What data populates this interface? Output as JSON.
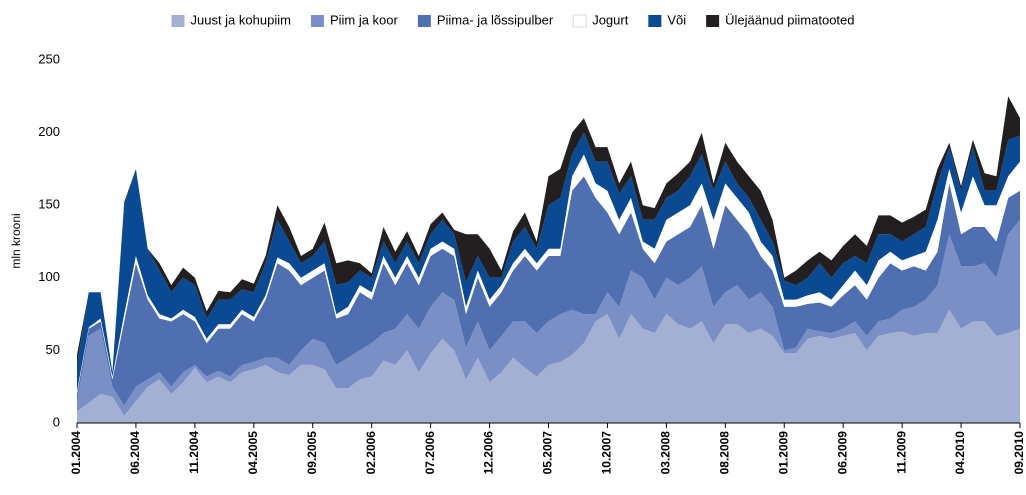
{
  "chart_data": {
    "type": "stacked_area",
    "ylabel": "mln krooni",
    "categories": [
      "01.2004",
      null,
      null,
      null,
      null,
      "06.2004",
      null,
      null,
      null,
      null,
      "11.2004",
      null,
      null,
      null,
      null,
      "04.2005",
      null,
      null,
      null,
      null,
      "09.2005",
      null,
      null,
      null,
      null,
      "02.2006",
      null,
      null,
      null,
      null,
      "07.2006",
      null,
      null,
      null,
      null,
      "12.2006",
      null,
      null,
      null,
      null,
      "05.2007",
      null,
      null,
      null,
      null,
      "10.2007",
      null,
      null,
      null,
      null,
      "03.2008",
      null,
      null,
      null,
      null,
      "08.2008",
      null,
      null,
      null,
      null,
      "01.2009",
      null,
      null,
      null,
      null,
      "06.2009",
      null,
      null,
      null,
      null,
      "11.2009",
      null,
      null,
      null,
      null,
      "04.2010",
      null,
      null,
      null,
      null,
      "09.2010"
    ],
    "ylim": [
      0,
      250
    ],
    "yticks": [
      0,
      50,
      100,
      150,
      200,
      250
    ],
    "grid": false,
    "legend": "top",
    "series": [
      {
        "name": "Juust ja kohupiim",
        "color": "#a3afd3",
        "values": [
          8,
          14,
          20,
          18,
          5,
          15,
          25,
          30,
          20,
          28,
          38,
          28,
          32,
          28,
          35,
          37,
          40,
          35,
          33,
          40,
          40,
          37,
          24,
          24,
          30,
          32,
          43,
          40,
          50,
          35,
          48,
          58,
          50,
          30,
          45,
          28,
          35,
          45,
          38,
          32,
          40,
          42,
          47,
          55,
          70,
          75,
          58,
          75,
          65,
          62,
          75,
          68,
          65,
          70,
          55,
          68,
          68,
          62,
          65,
          60,
          48,
          48,
          58,
          60,
          58,
          60,
          62,
          50,
          60,
          62,
          63,
          60,
          62,
          62,
          78,
          65,
          70,
          70,
          60,
          62,
          65
        ]
      },
      {
        "name": "Piim ja koor",
        "color": "#7a8fc6",
        "values": [
          7,
          46,
          45,
          7,
          7,
          10,
          5,
          5,
          5,
          7,
          2,
          4,
          4,
          4,
          5,
          5,
          5,
          10,
          7,
          10,
          18,
          18,
          16,
          21,
          20,
          23,
          19,
          25,
          25,
          30,
          32,
          32,
          35,
          22,
          25,
          22,
          25,
          25,
          32,
          30,
          30,
          33,
          31,
          20,
          5,
          15,
          22,
          30,
          35,
          23,
          25,
          27,
          35,
          38,
          25,
          22,
          27,
          23,
          25,
          20,
          2,
          4,
          7,
          3,
          4,
          5,
          8,
          10,
          10,
          10,
          15,
          20,
          23,
          33,
          52,
          43,
          38,
          40,
          40,
          68,
          75
        ]
      },
      {
        "name": "Piima- ja lõssipulber",
        "color": "#4f6fb0",
        "values": [
          5,
          5,
          5,
          5,
          58,
          85,
          55,
          37,
          45,
          40,
          30,
          23,
          29,
          33,
          35,
          28,
          40,
          65,
          65,
          45,
          42,
          50,
          32,
          30,
          40,
          30,
          48,
          30,
          35,
          30,
          35,
          30,
          30,
          23,
          30,
          30,
          30,
          35,
          45,
          43,
          45,
          40,
          82,
          95,
          80,
          55,
          50,
          40,
          20,
          25,
          25,
          35,
          35,
          42,
          40,
          60,
          45,
          45,
          25,
          25,
          30,
          28,
          17,
          20,
          18,
          23,
          25,
          25,
          30,
          38,
          27,
          28,
          20,
          23,
          35,
          22,
          27,
          25,
          25,
          25,
          20
        ]
      },
      {
        "name": "Jogurt",
        "color": "#ffffff",
        "values": [
          2,
          1,
          2,
          2,
          5,
          5,
          3,
          3,
          2,
          3,
          3,
          3,
          3,
          3,
          3,
          3,
          3,
          4,
          5,
          5,
          5,
          5,
          3,
          5,
          5,
          5,
          5,
          5,
          5,
          5,
          5,
          5,
          5,
          5,
          5,
          5,
          5,
          5,
          5,
          5,
          5,
          5,
          10,
          15,
          10,
          15,
          10,
          10,
          5,
          10,
          15,
          15,
          15,
          15,
          20,
          15,
          15,
          15,
          10,
          10,
          5,
          5,
          6,
          7,
          5,
          7,
          10,
          10,
          12,
          8,
          7,
          7,
          13,
          22,
          10,
          15,
          35,
          15,
          25,
          15,
          20
        ]
      },
      {
        "name": "Või",
        "color": "#0a4a93",
        "values": [
          18,
          24,
          18,
          3,
          75,
          60,
          32,
          30,
          18,
          22,
          22,
          14,
          17,
          17,
          14,
          17,
          22,
          26,
          15,
          10,
          10,
          15,
          20,
          17,
          10,
          10,
          10,
          10,
          10,
          10,
          10,
          15,
          10,
          17,
          10,
          15,
          5,
          15,
          15,
          10,
          30,
          35,
          15,
          15,
          15,
          20,
          18,
          15,
          15,
          20,
          15,
          15,
          20,
          20,
          20,
          15,
          10,
          10,
          15,
          10,
          13,
          10,
          12,
          20,
          15,
          15,
          10,
          15,
          18,
          12,
          13,
          15,
          17,
          25,
          15,
          15,
          20,
          10,
          10,
          25,
          18
        ]
      },
      {
        "name": "Ülejäänud piimatooted",
        "color": "#231f20",
        "values": [
          7,
          0,
          0,
          0,
          2,
          0,
          0,
          5,
          5,
          7,
          5,
          5,
          6,
          5,
          7,
          6,
          5,
          10,
          10,
          5,
          5,
          13,
          15,
          15,
          5,
          3,
          10,
          8,
          7,
          5,
          7,
          5,
          3,
          33,
          15,
          20,
          5,
          7,
          10,
          5,
          20,
          20,
          15,
          10,
          10,
          10,
          7,
          10,
          10,
          8,
          10,
          12,
          10,
          15,
          5,
          13,
          15,
          15,
          20,
          15,
          2,
          10,
          12,
          8,
          12,
          12,
          15,
          12,
          13,
          13,
          13,
          12,
          12,
          10,
          3,
          3,
          5,
          12,
          10,
          30,
          12
        ]
      }
    ]
  }
}
